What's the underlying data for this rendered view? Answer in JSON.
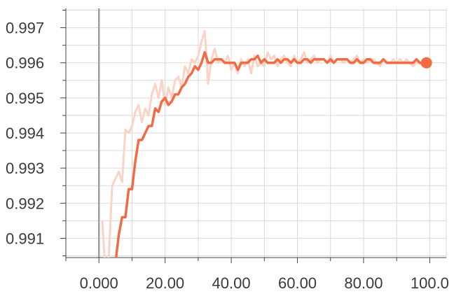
{
  "chart_data": {
    "type": "line",
    "title": "",
    "xlabel": "",
    "ylabel": "",
    "xlim": [
      -10,
      105
    ],
    "ylim": [
      0.99045,
      0.99755
    ],
    "x_ticks": [
      0,
      20,
      40,
      60,
      80,
      100
    ],
    "x_tick_labels": [
      "0.000",
      "20.00",
      "40.00",
      "60.00",
      "80.00",
      "100.0"
    ],
    "y_ticks": [
      0.991,
      0.992,
      0.993,
      0.994,
      0.995,
      0.996,
      0.997
    ],
    "y_tick_labels": [
      "0.991",
      "0.992",
      "0.993",
      "0.994",
      "0.995",
      "0.996",
      "0.997"
    ],
    "grid": true,
    "colors": {
      "smoothed": "#f26b43",
      "raw": "#fbd3c6",
      "grid": "#d9d9d9",
      "zero_line": "#9e9e9e",
      "axis": "#444444"
    },
    "series": [
      {
        "kind": "raw",
        "x": [
          1,
          2,
          3,
          4,
          5,
          6,
          7,
          8,
          9,
          10,
          11,
          12,
          13,
          14,
          15,
          16,
          17,
          18,
          19,
          20,
          21,
          22,
          23,
          24,
          25,
          26,
          27,
          28,
          29,
          30,
          31,
          32,
          33,
          34,
          35,
          36,
          37,
          38,
          39,
          40,
          41,
          42,
          43,
          44,
          45,
          46,
          47,
          48,
          49,
          50,
          51,
          52,
          53,
          54,
          55,
          56,
          57,
          58,
          59,
          60,
          61,
          62,
          63,
          64,
          65,
          66,
          67,
          68,
          69,
          70,
          71,
          72,
          73,
          74,
          75,
          76,
          77,
          78,
          79,
          80,
          81,
          82,
          83,
          84,
          85,
          86,
          87,
          88,
          89,
          90,
          91,
          92,
          93,
          94,
          95,
          96,
          97,
          98,
          99
        ],
        "values": [
          0.9915,
          0.99,
          0.9905,
          0.9925,
          0.9927,
          0.9929,
          0.9926,
          0.9941,
          0.994,
          0.9942,
          0.9946,
          0.9948,
          0.9943,
          0.9947,
          0.9945,
          0.9951,
          0.9954,
          0.995,
          0.9955,
          0.9948,
          0.9953,
          0.995,
          0.9955,
          0.9956,
          0.9953,
          0.9959,
          0.9957,
          0.9961,
          0.996,
          0.9962,
          0.9966,
          0.9969,
          0.9954,
          0.9961,
          0.9964,
          0.996,
          0.9961,
          0.996,
          0.9962,
          0.9958,
          0.996,
          0.9957,
          0.9961,
          0.9959,
          0.9961,
          0.9957,
          0.9962,
          0.9959,
          0.996,
          0.9959,
          0.9963,
          0.9961,
          0.9962,
          0.9959,
          0.9961,
          0.9962,
          0.996,
          0.9959,
          0.9962,
          0.996,
          0.9961,
          0.9963,
          0.996,
          0.9961,
          0.9962,
          0.996,
          0.9961,
          0.9961,
          0.996,
          0.9962,
          0.996,
          0.9961,
          0.9961,
          0.996,
          0.9961,
          0.996,
          0.9961,
          0.9962,
          0.996,
          0.9961,
          0.996,
          0.9961,
          0.9961,
          0.996,
          0.9959,
          0.9961,
          0.996,
          0.996,
          0.9961,
          0.996,
          0.9961,
          0.996,
          0.9961,
          0.996,
          0.9959,
          0.996,
          0.996,
          0.9959,
          0.996
        ]
      },
      {
        "kind": "smoothed",
        "x": [
          5,
          6,
          7,
          8,
          9,
          10,
          11,
          12,
          13,
          14,
          15,
          16,
          17,
          18,
          19,
          20,
          21,
          22,
          23,
          24,
          25,
          26,
          27,
          28,
          29,
          30,
          31,
          32,
          33,
          34,
          35,
          36,
          37,
          38,
          39,
          40,
          41,
          42,
          43,
          44,
          45,
          46,
          47,
          48,
          49,
          50,
          51,
          52,
          53,
          54,
          55,
          56,
          57,
          58,
          59,
          60,
          61,
          62,
          63,
          64,
          65,
          66,
          67,
          68,
          69,
          70,
          71,
          72,
          73,
          74,
          75,
          76,
          77,
          78,
          79,
          80,
          81,
          82,
          83,
          84,
          85,
          86,
          87,
          88,
          89,
          90,
          91,
          92,
          93,
          94,
          95,
          96,
          97,
          98,
          99
        ],
        "values": [
          0.9903,
          0.9911,
          0.9916,
          0.9916,
          0.9924,
          0.9924,
          0.9932,
          0.9938,
          0.9938,
          0.994,
          0.9942,
          0.9942,
          0.9947,
          0.9946,
          0.9949,
          0.995,
          0.9948,
          0.9949,
          0.9951,
          0.9951,
          0.9953,
          0.9954,
          0.9956,
          0.9957,
          0.9959,
          0.9958,
          0.996,
          0.9963,
          0.996,
          0.996,
          0.9961,
          0.9961,
          0.9961,
          0.996,
          0.996,
          0.996,
          0.996,
          0.9958,
          0.996,
          0.996,
          0.996,
          0.9961,
          0.9961,
          0.9962,
          0.996,
          0.9961,
          0.996,
          0.996,
          0.996,
          0.9961,
          0.996,
          0.9961,
          0.9961,
          0.996,
          0.9961,
          0.996,
          0.996,
          0.9961,
          0.9961,
          0.996,
          0.9961,
          0.9961,
          0.9961,
          0.9961,
          0.996,
          0.9961,
          0.996,
          0.9961,
          0.9961,
          0.9961,
          0.9961,
          0.996,
          0.996,
          0.9961,
          0.996,
          0.996,
          0.9961,
          0.9961,
          0.996,
          0.996,
          0.996,
          0.9961,
          0.996,
          0.996,
          0.996,
          0.996,
          0.996,
          0.996,
          0.996,
          0.996,
          0.996,
          0.9961,
          0.996,
          0.996,
          0.996
        ]
      }
    ]
  }
}
